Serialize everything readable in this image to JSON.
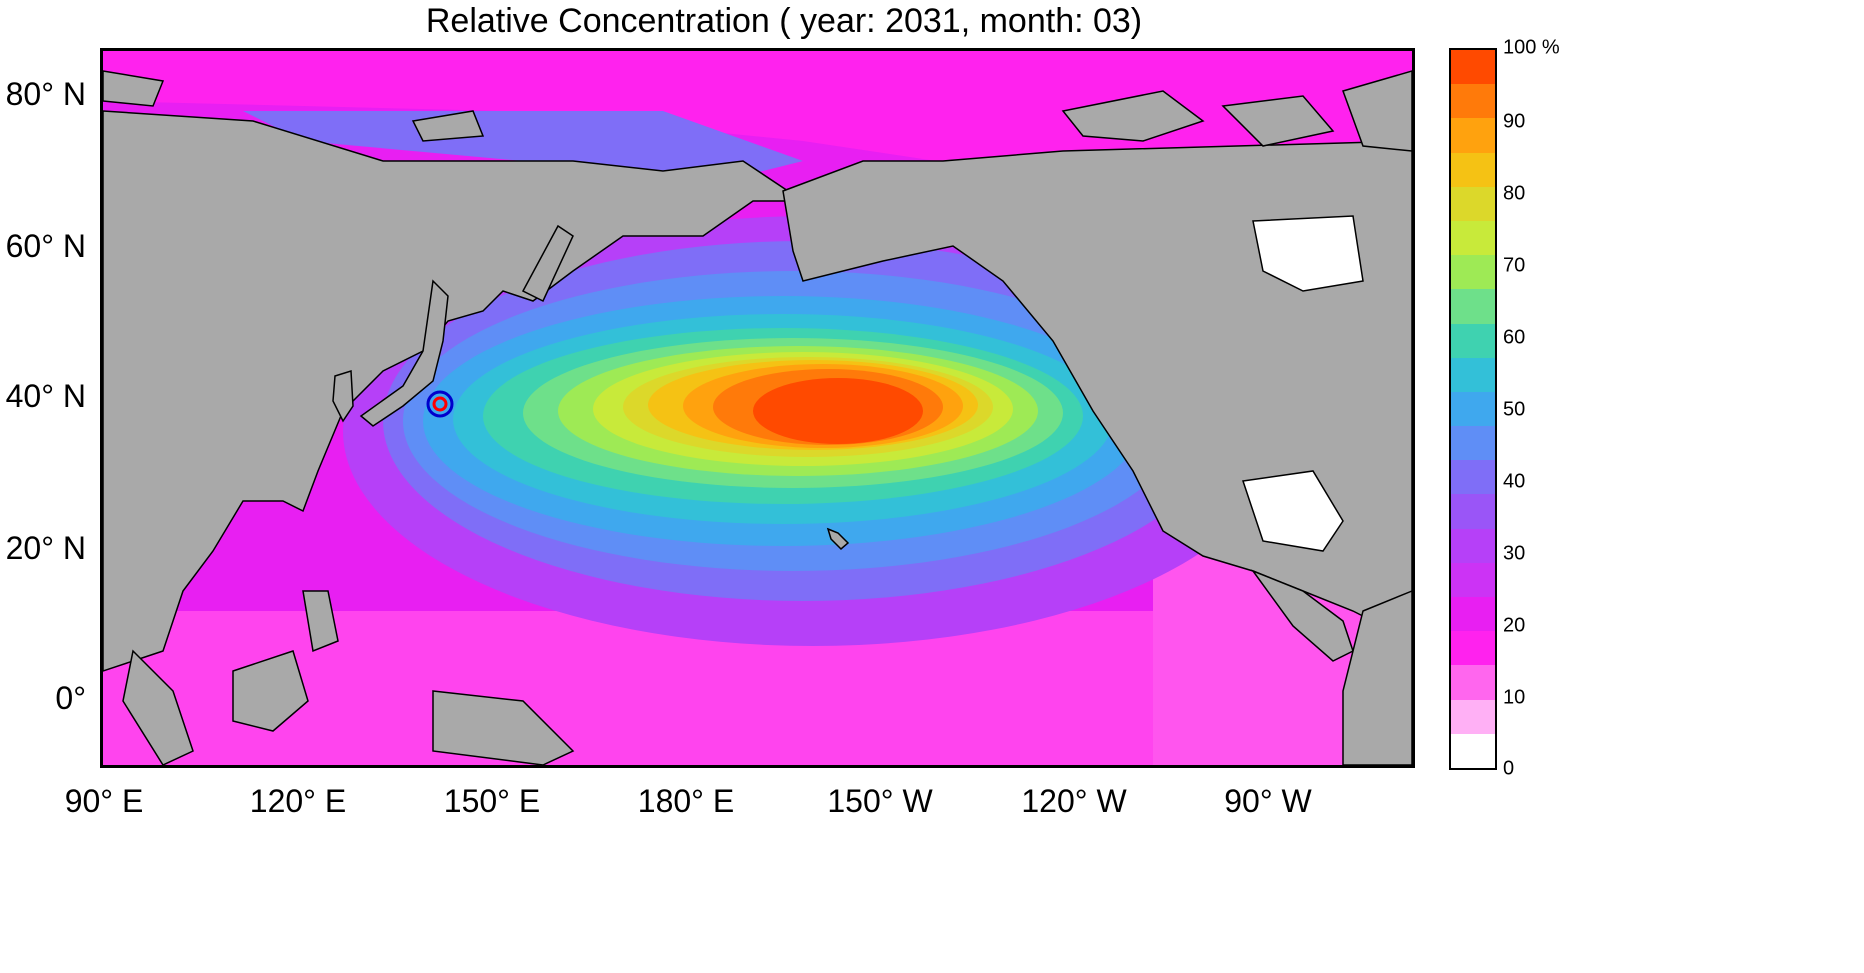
{
  "title": "Relative Concentration ( year: 2031, month: 03)",
  "axes": {
    "latitude_labels": [
      "80° N",
      "60° N",
      "40° N",
      "20° N",
      "0°"
    ],
    "longitude_labels": [
      "90° E",
      "120° E",
      "150° E",
      "180° E",
      "150° W",
      "120° W",
      "90° W"
    ]
  },
  "colorbar": {
    "tick_labels": [
      "100 %",
      "90",
      "80",
      "70",
      "60",
      "50",
      "40",
      "30",
      "20",
      "10",
      "0"
    ],
    "colors": [
      "#ffffff",
      "#ffb0f5",
      "#ff66ee",
      "#ff22ee",
      "#e81ff2",
      "#cc33f5",
      "#b640f8",
      "#9a55f7",
      "#7f6ef7",
      "#5f8ef6",
      "#3fa8ee",
      "#33c0d8",
      "#3fd2b0",
      "#6ee08a",
      "#9eea55",
      "#c8ea3a",
      "#dcd82a",
      "#f5c214",
      "#ffa20e",
      "#ff7a0a",
      "#ff4a00"
    ]
  },
  "colors": {
    "land": "#a9a9a9",
    "frame": "#000000"
  },
  "marker": {
    "description_colors": [
      "#ff0000",
      "#0000cc"
    ]
  }
}
